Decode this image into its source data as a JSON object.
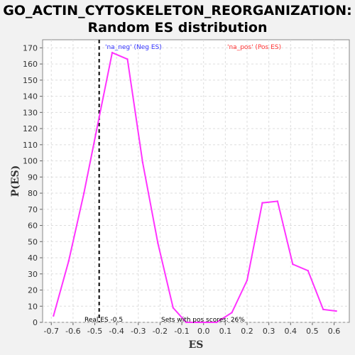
{
  "title_line1": "GO_ACTIN_CYTOSKELETON_REORGANIZATION:",
  "title_line2": "Random ES distribution",
  "chart_data": {
    "type": "line",
    "title": "GO_ACTIN_CYTOSKELETON_REORGANIZATION: Random ES distribution",
    "xlabel": "ES",
    "ylabel": "P(ES)",
    "xlim": [
      -0.74,
      0.67
    ],
    "ylim": [
      0,
      175
    ],
    "xticks": [
      "-0.7",
      "-0.6",
      "-0.5",
      "-0.4",
      "-0.3",
      "-0.2",
      "-0.1",
      "0.0",
      "0.1",
      "0.2",
      "0.3",
      "0.4",
      "0.5",
      "0.6"
    ],
    "yticks": [
      "0",
      "10",
      "20",
      "30",
      "40",
      "50",
      "60",
      "70",
      "80",
      "90",
      "100",
      "110",
      "120",
      "130",
      "140",
      "150",
      "160",
      "170"
    ],
    "series": [
      {
        "color": "#ff33ff",
        "x": [
          -0.69,
          -0.62,
          -0.55,
          -0.48,
          -0.42,
          -0.35,
          -0.28,
          -0.21,
          -0.14,
          -0.08,
          -0.01,
          0.06,
          0.13,
          0.2,
          0.27,
          0.34,
          0.41,
          0.48,
          0.55,
          0.61
        ],
        "y": [
          4,
          38,
          80,
          127,
          167,
          163,
          99,
          49,
          9,
          0,
          0,
          0,
          6,
          26,
          74,
          75,
          36,
          32,
          8,
          7
        ]
      }
    ],
    "real_es": -0.48,
    "grid": true,
    "annotations": {
      "neg_label": "'na_neg' (Neg ES)",
      "pos_label": "'na_pos' (Pos ES)",
      "real_es_text": "Real ES -0.5",
      "sets_text": "Sets with pos scores: 26%"
    },
    "colors": {
      "line": "#ff33ff",
      "neg": "#3333ff",
      "pos": "#ff3333",
      "real_es_line": "#000000"
    }
  }
}
